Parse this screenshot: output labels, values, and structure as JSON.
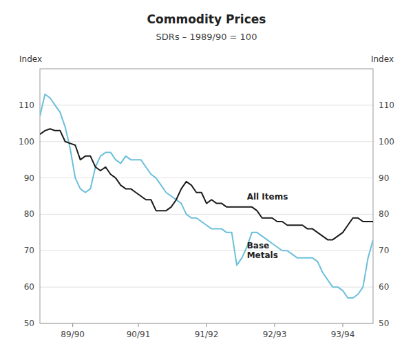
{
  "chart_data": {
    "type": "line",
    "title": "Commodity Prices",
    "subtitle": "SDRs – 1989/90 = 100",
    "y_label": "Index",
    "y2_label": "Index",
    "x": [
      0,
      1,
      2,
      3,
      4,
      5,
      6,
      7,
      8,
      9,
      10,
      11,
      12,
      13,
      14,
      15,
      16,
      17,
      18,
      19,
      20,
      21,
      22,
      23,
      24,
      25,
      26,
      27,
      28,
      29,
      30,
      31,
      32,
      33,
      34,
      35,
      36,
      37,
      38,
      39,
      40,
      41,
      42,
      43,
      44,
      45,
      46,
      47,
      48,
      49,
      50,
      51,
      52,
      53,
      54,
      55,
      56,
      57,
      58,
      59,
      60,
      61,
      62,
      63,
      64,
      65,
      66
    ],
    "series": [
      {
        "color": "#6bbfdb",
        "values": [
          107,
          113,
          112,
          110,
          108,
          104,
          98,
          90,
          87,
          86,
          87,
          93,
          96,
          97,
          97,
          95,
          94,
          96,
          95,
          95,
          95,
          93,
          91,
          90,
          88,
          86,
          85,
          84,
          83,
          80,
          79,
          79,
          78,
          77,
          76,
          76,
          76,
          75,
          75,
          66,
          68,
          71,
          75,
          75,
          74,
          73,
          72,
          71,
          70,
          70,
          69,
          68,
          68,
          68,
          68,
          67,
          64,
          62,
          60,
          60,
          59,
          57,
          57,
          58,
          60,
          68,
          73
        ]
      },
      {
        "color": "#1a1a1a",
        "values": [
          102,
          103,
          103.5,
          103,
          103,
          100,
          99.5,
          99,
          95,
          96,
          96,
          93,
          92,
          93,
          91,
          90,
          88,
          87,
          87,
          86,
          85,
          84,
          84,
          81,
          81,
          81,
          82,
          84,
          87,
          89,
          88,
          86,
          86,
          83,
          84,
          83,
          83,
          82,
          82,
          82,
          82,
          82,
          82,
          81,
          79,
          79,
          79,
          78,
          78,
          77,
          77,
          77,
          77,
          76,
          76,
          75,
          74,
          73,
          73,
          74,
          75,
          77,
          79,
          79,
          78,
          78,
          78
        ]
      }
    ],
    "annotations": [
      {
        "text": "All Items",
        "x": 41,
        "y": 84
      },
      {
        "text": "Base\nMetals",
        "x": 41,
        "y": 68
      }
    ],
    "xlim": [
      0,
      66
    ],
    "xticks": [
      {
        "value": 6.5,
        "label": "89/90"
      },
      {
        "value": 19.5,
        "label": "90/91"
      },
      {
        "value": 33.0,
        "label": "91/92"
      },
      {
        "value": 46.5,
        "label": "92/93"
      },
      {
        "value": 60.0,
        "label": "93/94"
      }
    ],
    "ylim": [
      50,
      120
    ],
    "yticks": [
      50,
      60,
      70,
      80,
      90,
      100,
      110
    ],
    "y2lim": [
      50,
      120
    ],
    "y2ticks": [
      50,
      60,
      70,
      80,
      90,
      100,
      110
    ],
    "grid": true
  }
}
